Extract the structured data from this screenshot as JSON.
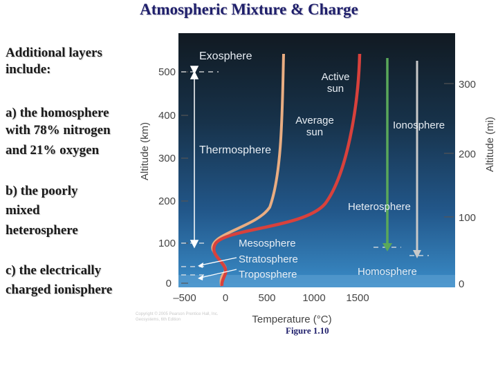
{
  "slide": {
    "title": "Atmospheric Mixture & Charge",
    "bullets": [
      "Additional layers",
      "include:",
      "a) the homosphere",
      "with 78% nitrogen",
      "and 21% oxygen",
      "b) the poorly",
      "mixed",
      "heterosphere",
      "c) the electrically",
      "charged ionisphere"
    ],
    "caption": "Figure 1.10"
  },
  "figure": {
    "axis_left_label": "Altitude (km)",
    "axis_right_label": "Altitude (mi)",
    "axis_bottom_label": "Temperature (°C)",
    "left_ticks": [
      "500",
      "400",
      "300",
      "200",
      "100",
      "0"
    ],
    "right_ticks": [
      "300",
      "200",
      "100",
      "0"
    ],
    "bottom_ticks": [
      "–500",
      "0",
      "500",
      "1000",
      "1500"
    ],
    "layers": {
      "exosphere": "Exosphere",
      "thermosphere": "Thermosphere",
      "mesosphere": "Mesosphere",
      "stratosphere": "Stratosphere",
      "troposphere": "Troposphere"
    },
    "curves": {
      "active_line1": "Active",
      "active_line2": "sun",
      "average_line1": "Average",
      "average_line2": "sun"
    },
    "regions": {
      "ionosphere": "Ionosphere",
      "heterosphere": "Heterosphere",
      "homosphere": "Homosphere"
    },
    "copyright_line1": "Copyright © 2005 Pearson Prentice Hall, Inc.",
    "copyright_line2": "Geosystems, 6th Edition"
  },
  "colors": {
    "sky_top": "#111a22",
    "sky_bottom": "#2f7fbe",
    "active_sun_curve": "#d8413c",
    "average_sun_curve": "#e9ad82",
    "heterosphere_line": "#5aa85a",
    "ionosphere_line": "#c9c9c9",
    "title": "#1f1f6b"
  }
}
